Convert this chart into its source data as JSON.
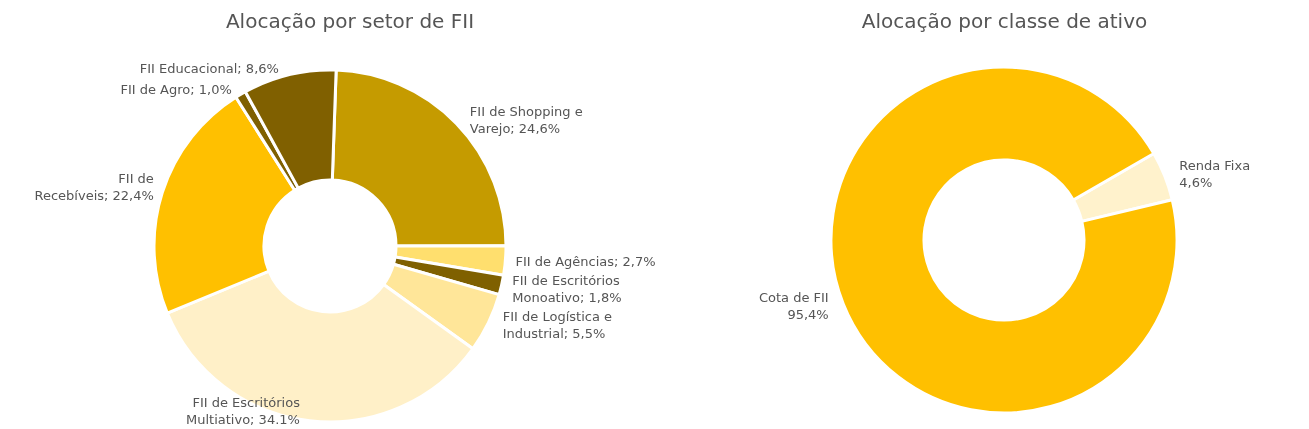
{
  "chart_data": [
    {
      "type": "donut",
      "title": "Alocação por setor de FII",
      "categories": [
        "FII de Shopping e Varejo",
        "FII de Agências",
        "FII de Escritórios Monoativo",
        "FII de Logística e Industrial",
        "FII de Escritórios Multiativo",
        "FII de Recebíveis",
        "FII de Agro",
        "FII Educacional"
      ],
      "values": [
        24.6,
        2.7,
        1.8,
        5.5,
        34.1,
        22.4,
        1.0,
        8.6
      ],
      "value_labels": [
        "24,6%",
        "2,7%",
        "1,8%",
        "5,5%",
        "34.1%",
        "22,4%",
        "1,0%",
        "8,6%"
      ],
      "colors": [
        "#c59b00",
        "#ffdf6e",
        "#7f6000",
        "#ffe699",
        "#fff0c8",
        "#ffc000",
        "#7f6000",
        "#806000"
      ],
      "legend": false
    },
    {
      "type": "donut",
      "title": "Alocação por classe de ativo",
      "categories": [
        "Renda Fixa",
        "Cota de FII"
      ],
      "values": [
        4.6,
        95.4
      ],
      "value_labels": [
        "4,6%",
        "95,4%"
      ],
      "colors": [
        "#fff2cc",
        "#ffc000"
      ],
      "legend": false
    }
  ]
}
